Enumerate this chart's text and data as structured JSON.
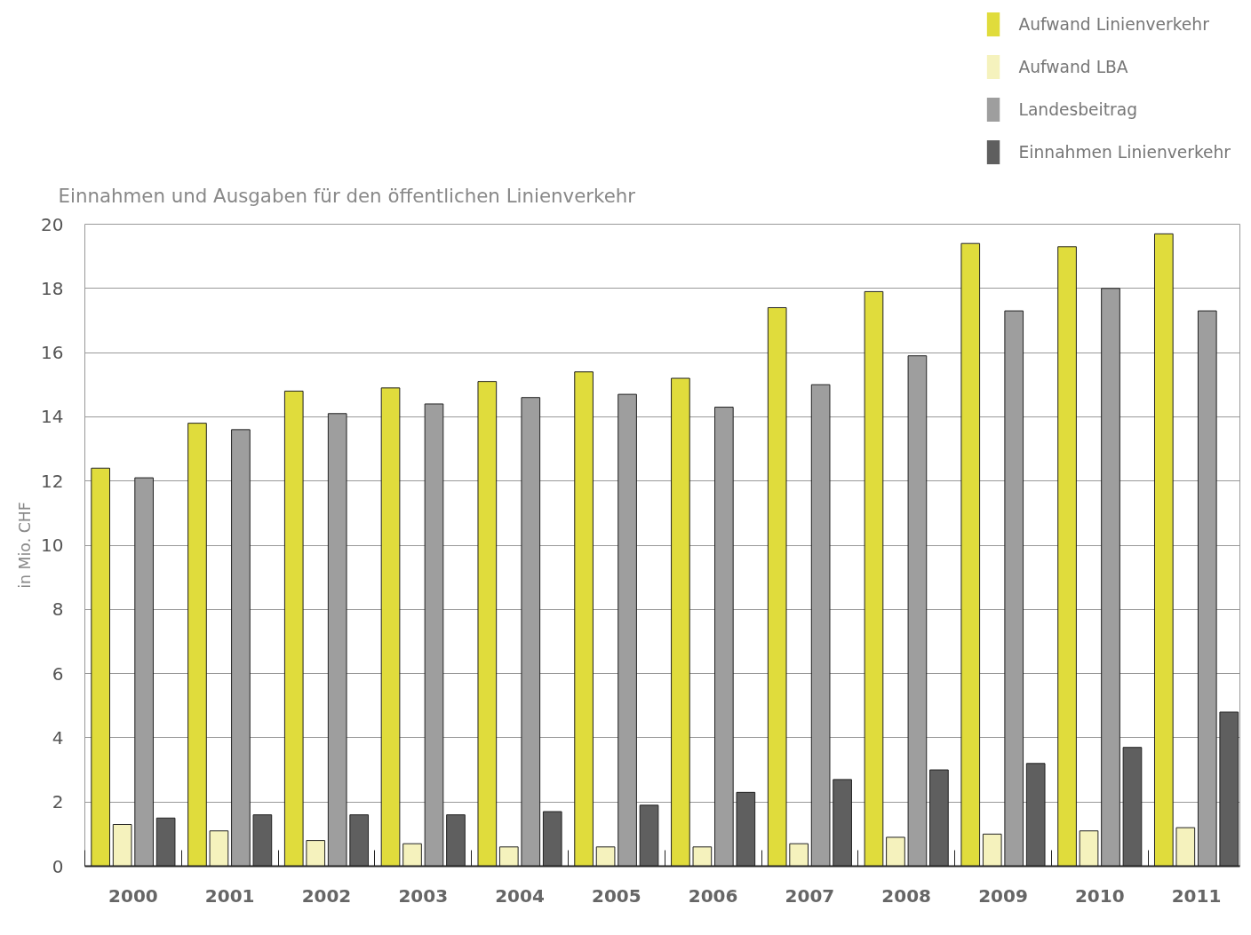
{
  "chart_data": {
    "type": "bar",
    "title": "Einnahmen und Ausgaben für den öffentlichen Linienverkehr",
    "ylabel": "in Mio. CHF",
    "categories": [
      "2000",
      "2001",
      "2002",
      "2003",
      "2004",
      "2005",
      "2006",
      "2007",
      "2008",
      "2009",
      "2010",
      "2011"
    ],
    "series": [
      {
        "name": "Aufwand Linienverkehr",
        "color": "#e0dc3c",
        "values": [
          12.4,
          13.8,
          14.8,
          14.9,
          15.1,
          15.4,
          15.2,
          17.4,
          17.9,
          19.4,
          19.3,
          19.7
        ]
      },
      {
        "name": "Aufwand LBA",
        "color": "#f5f2bd",
        "values": [
          1.3,
          1.1,
          0.8,
          0.7,
          0.6,
          0.6,
          0.6,
          0.7,
          0.9,
          1.0,
          1.1,
          1.2
        ]
      },
      {
        "name": "Landesbeitrag",
        "color": "#9e9e9e",
        "values": [
          12.1,
          13.6,
          14.1,
          14.4,
          14.6,
          14.7,
          14.3,
          15.0,
          15.9,
          17.3,
          18.0,
          17.3
        ]
      },
      {
        "name": "Einnahmen Linienverkehr",
        "color": "#5f5f5f",
        "values": [
          1.5,
          1.6,
          1.6,
          1.6,
          1.7,
          1.9,
          2.3,
          2.7,
          3.0,
          3.2,
          3.7,
          4.8
        ]
      }
    ],
    "ylim": [
      0,
      20
    ],
    "yticks": [
      0,
      2,
      4,
      6,
      8,
      10,
      12,
      14,
      16,
      18,
      20
    ],
    "grid": "y",
    "legend": "top right"
  }
}
